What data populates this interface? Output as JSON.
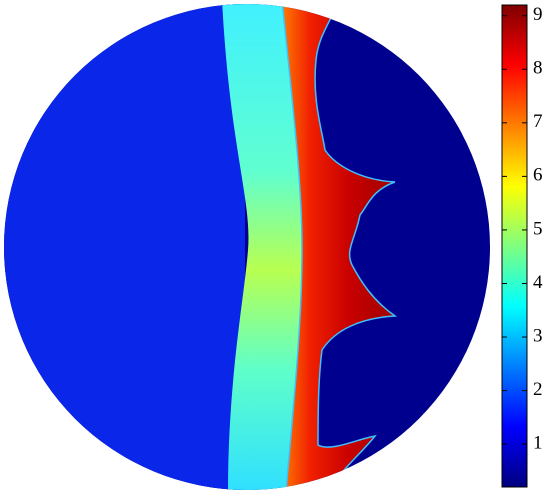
{
  "chart_data": {
    "type": "colorbar-field",
    "colorbar": {
      "colormap": "jet",
      "lim": [
        0.2,
        9.2
      ],
      "ticks": [
        1,
        2,
        3,
        4,
        5,
        6,
        7,
        8,
        9
      ]
    }
  }
}
